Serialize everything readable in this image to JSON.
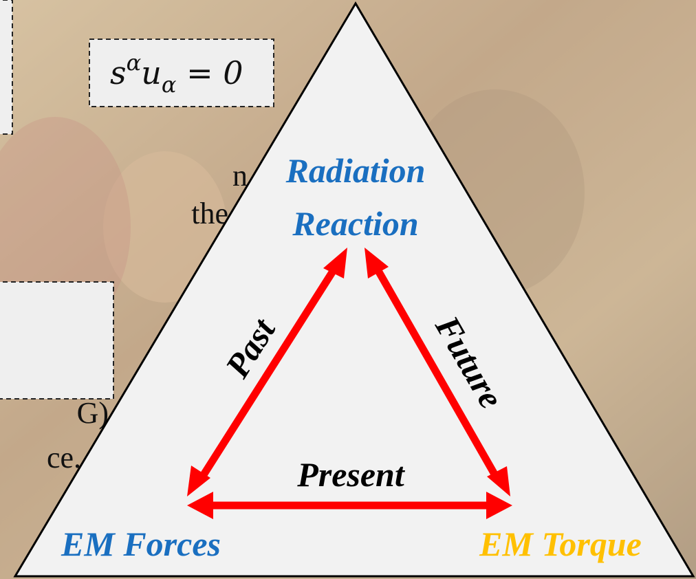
{
  "equation": {
    "base": "s",
    "sup": "α",
    "base2": "u",
    "sub": "α",
    "rest": " = 0"
  },
  "fragments": [
    "n",
    "the",
    "G)",
    "ce."
  ],
  "nodes": {
    "top": [
      "Radiation",
      "Reaction"
    ],
    "left": "EM Forces",
    "right": "EM Torque"
  },
  "edges": {
    "left": "Past",
    "right": "Future",
    "bottom": "Present"
  }
}
